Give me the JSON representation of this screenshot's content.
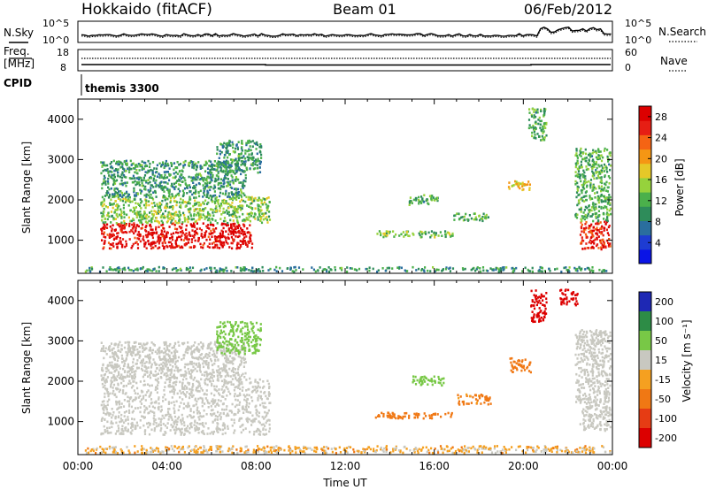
{
  "header": {
    "radar": "Hokkaido (fitACF)",
    "beam": "Beam 01",
    "date": "06/Feb/2012"
  },
  "status_panel": {
    "nsky_label": "N.Sky",
    "nsearch_label": "N.Search",
    "noise_ticks": [
      "10^5",
      "10^0"
    ],
    "freq_label": "Freq.",
    "freq_unit": "[MHz]",
    "freq_ticks": [
      "18",
      "8"
    ],
    "nave_label": "Nave",
    "nave_ticks": [
      "60",
      "0"
    ],
    "cpid_label": "CPID",
    "cpid_value": "themis 3300"
  },
  "chart_data": [
    {
      "type": "heatmap",
      "name": "power",
      "xlabel": "",
      "ylabel": "Slant Range [km]",
      "ylim": [
        180,
        4500
      ],
      "yticks": [
        1000,
        2000,
        3000,
        4000
      ],
      "colorbar": {
        "label": "Power [dB]",
        "ticks": [
          4,
          8,
          12,
          16,
          20,
          24,
          28
        ],
        "range": [
          0,
          30
        ],
        "colors": [
          "#0a14e6",
          "#1e3cd2",
          "#2a6e9e",
          "#2e8c5a",
          "#4bb04b",
          "#96d23c",
          "#e6c828",
          "#f59614",
          "#f56414",
          "#e61e14",
          "#dc0000"
        ]
      },
      "regions": [
        {
          "t": [
            1.0,
            7.8
          ],
          "r": [
            820,
            1450
          ],
          "level": 28
        },
        {
          "t": [
            1.0,
            8.6
          ],
          "r": [
            1450,
            2100
          ],
          "level": 14
        },
        {
          "t": [
            1.0,
            7.5
          ],
          "r": [
            2100,
            3000
          ],
          "level": 10
        },
        {
          "t": [
            6.2,
            8.2
          ],
          "r": [
            2700,
            3500
          ],
          "level": 10
        },
        {
          "t": [
            13.3,
            16.8
          ],
          "r": [
            1100,
            1250
          ],
          "level": 14
        },
        {
          "t": [
            16.8,
            18.4
          ],
          "r": [
            1500,
            1700
          ],
          "level": 12
        },
        {
          "t": [
            14.8,
            16.2
          ],
          "r": [
            1900,
            2150
          ],
          "level": 12
        },
        {
          "t": [
            19.3,
            20.3
          ],
          "r": [
            2250,
            2500
          ],
          "level": 18
        },
        {
          "t": [
            20.2,
            21.0
          ],
          "r": [
            3500,
            4300
          ],
          "level": 12
        },
        {
          "t": [
            22.5,
            24.0
          ],
          "r": [
            800,
            1500
          ],
          "level": 26
        },
        {
          "t": [
            22.3,
            24.0
          ],
          "r": [
            1500,
            3300
          ],
          "level": 12
        },
        {
          "t": [
            0.3,
            24.0
          ],
          "r": [
            180,
            360
          ],
          "level": 10
        }
      ]
    },
    {
      "type": "heatmap",
      "name": "velocity",
      "xlabel": "Time UT",
      "ylabel": "Slant Range [km]",
      "ylim": [
        180,
        4500
      ],
      "yticks": [
        1000,
        2000,
        3000,
        4000
      ],
      "xticks": [
        "00:00",
        "04:00",
        "08:00",
        "12:00",
        "16:00",
        "20:00",
        "00:00"
      ],
      "colorbar": {
        "label": "Velocity [m s⁻¹]",
        "ticks": [
          200,
          100,
          50,
          15,
          -15,
          -50,
          -100,
          -200
        ],
        "colors": [
          "#1e28b4",
          "#2d8c46",
          "#78c846",
          "#c8c8c0",
          "#f5a020",
          "#f07814",
          "#e63c14",
          "#dc0000"
        ]
      },
      "regions": [
        {
          "t": [
            1.0,
            8.6
          ],
          "r": [
            700,
            2100
          ],
          "v": 0
        },
        {
          "t": [
            1.0,
            7.5
          ],
          "r": [
            2100,
            3000
          ],
          "v": 5
        },
        {
          "t": [
            6.2,
            8.2
          ],
          "r": [
            2700,
            3500
          ],
          "v": 60
        },
        {
          "t": [
            13.3,
            16.8
          ],
          "r": [
            1100,
            1250
          ],
          "v": -60
        },
        {
          "t": [
            15.0,
            16.5
          ],
          "r": [
            1900,
            2150
          ],
          "v": 55
        },
        {
          "t": [
            17.0,
            18.5
          ],
          "r": [
            1450,
            1700
          ],
          "v": -40
        },
        {
          "t": [
            19.3,
            20.3
          ],
          "r": [
            2250,
            2600
          ],
          "v": -60
        },
        {
          "t": [
            20.3,
            21.0
          ],
          "r": [
            3500,
            4300
          ],
          "v": -250
        },
        {
          "t": [
            21.6,
            22.4
          ],
          "r": [
            3900,
            4300
          ],
          "v": -250
        },
        {
          "t": [
            22.5,
            24.0
          ],
          "r": [
            800,
            1500
          ],
          "v": 0
        },
        {
          "t": [
            22.3,
            24.0
          ],
          "r": [
            1500,
            3300
          ],
          "v": 5
        },
        {
          "t": [
            0.3,
            24.0
          ],
          "r": [
            180,
            420
          ],
          "v": -20
        }
      ]
    }
  ]
}
